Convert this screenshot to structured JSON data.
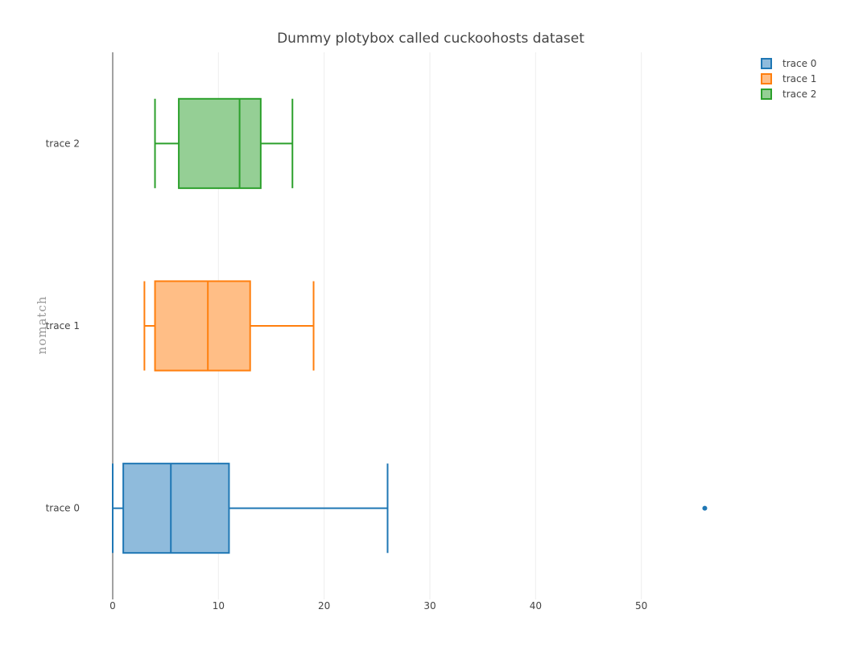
{
  "chart_data": {
    "type": "box",
    "orientation": "horizontal",
    "title": "Dummy plotybox called cuckoohosts dataset",
    "xlabel": "",
    "ylabel": "nomatch",
    "xlim": [
      0,
      60
    ],
    "xticks": [
      0,
      10,
      20,
      30,
      40,
      50
    ],
    "grid": true,
    "legend_position": "top-right",
    "series": [
      {
        "name": "trace 0",
        "color": "#1f77b4",
        "fill": "#8fbbdc",
        "whisker_low": 0,
        "q1": 1,
        "median": 5.5,
        "q3": 11,
        "whisker_high": 26,
        "outliers": [
          56
        ]
      },
      {
        "name": "trace 1",
        "color": "#ff7f0e",
        "fill": "#ffbe86",
        "whisker_low": 3,
        "q1": 4,
        "median": 9,
        "q3": 13,
        "whisker_high": 19,
        "outliers": []
      },
      {
        "name": "trace 2",
        "color": "#2ca02c",
        "fill": "#95cf95",
        "whisker_low": 4,
        "q1": 6.25,
        "median": 12,
        "q3": 14,
        "whisker_high": 17,
        "outliers": []
      }
    ]
  }
}
